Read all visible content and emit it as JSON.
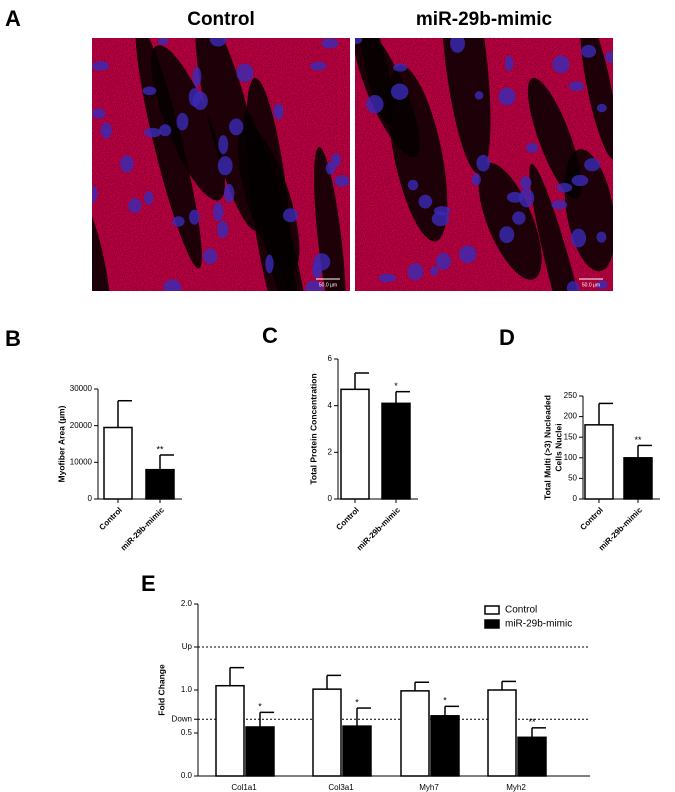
{
  "panel_a": {
    "panel": "A",
    "images": [
      {
        "title": "Control",
        "scale_bar": "50.0 µm"
      },
      {
        "title": "miR-29b-mimic",
        "scale_bar": "50.0 µm"
      }
    ]
  },
  "chart_data": [
    {
      "type": "bar",
      "panel": "B",
      "ylabel": [
        "Myofiber Area (µm)"
      ],
      "categories": [
        "Control",
        "miR-29b-mimic"
      ],
      "values": [
        19500,
        8000
      ],
      "errors": [
        7300,
        4000
      ],
      "colors": [
        "#ffffff",
        "#000000"
      ],
      "annotations": [
        null,
        "**"
      ],
      "ylim": [
        0,
        30000
      ],
      "yticks": [
        0,
        10000,
        20000,
        30000
      ]
    },
    {
      "type": "bar",
      "panel": "C",
      "ylabel": [
        "Total Protein Concentration"
      ],
      "categories": [
        "Control",
        "miR-29b-mimic"
      ],
      "values": [
        4.7,
        4.1
      ],
      "errors": [
        0.7,
        0.5
      ],
      "colors": [
        "#ffffff",
        "#000000"
      ],
      "annotations": [
        null,
        "*"
      ],
      "ylim": [
        0,
        6
      ],
      "yticks": [
        0,
        2,
        4,
        6
      ]
    },
    {
      "type": "bar",
      "panel": "D",
      "ylabel": [
        "Total Multi (>3) Nucleaded",
        "Cells Nuclei"
      ],
      "categories": [
        "Control",
        "miR-29b-mimic"
      ],
      "values": [
        180,
        100
      ],
      "errors": [
        52,
        30
      ],
      "colors": [
        "#ffffff",
        "#000000"
      ],
      "annotations": [
        null,
        "**"
      ],
      "ylim": [
        0,
        250
      ],
      "yticks": [
        0,
        50,
        100,
        150,
        200,
        250
      ]
    },
    {
      "type": "bar",
      "panel": "E",
      "ylabel": [
        "Fold Change"
      ],
      "categories": [
        "Col1a1",
        "Col3a1",
        "Myh7",
        "Myh2"
      ],
      "series": [
        {
          "name": "Control",
          "color": "#ffffff",
          "values": [
            1.05,
            1.01,
            0.99,
            1.0
          ],
          "errors": [
            0.21,
            0.16,
            0.1,
            0.1
          ]
        },
        {
          "name": "miR-29b-mimic",
          "color": "#000000",
          "values": [
            0.57,
            0.58,
            0.7,
            0.45
          ],
          "errors": [
            0.17,
            0.21,
            0.11,
            0.11
          ],
          "annotations": [
            "*",
            "*",
            "*",
            "**"
          ]
        }
      ],
      "ylim": [
        0,
        2.0
      ],
      "yticks": [
        {
          "value": 0,
          "label": "0.0"
        },
        0.5,
        {
          "value": 0.66,
          "label": "Down"
        },
        {
          "value": 1.0,
          "label": "1.0"
        },
        {
          "value": 1.5,
          "label": "Up"
        },
        {
          "value": 2.0,
          "label": "2.0"
        }
      ],
      "hlines": [
        1.5,
        0.66
      ],
      "legend": "upper right"
    }
  ]
}
